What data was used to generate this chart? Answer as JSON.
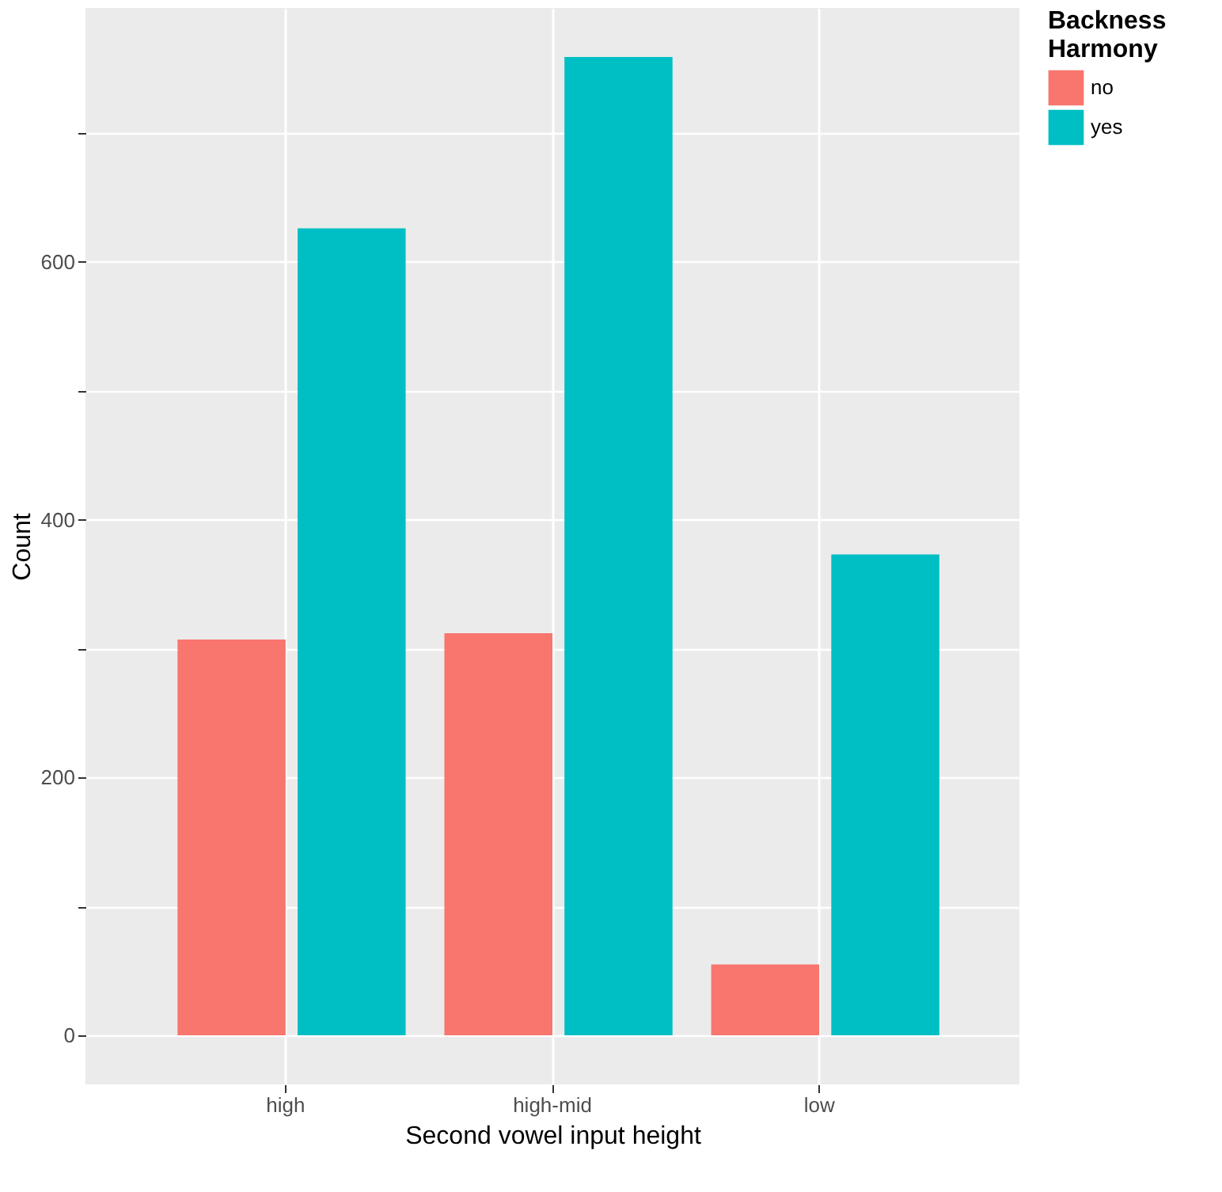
{
  "chart_data": {
    "type": "bar",
    "xlabel": "Second vowel input height",
    "ylabel": "Count",
    "legend_title": "Backness Harmony",
    "categories": [
      "high",
      "high-mid",
      "low"
    ],
    "series": [
      {
        "name": "no",
        "color": "#f8766d",
        "values": [
          307,
          312,
          55
        ]
      },
      {
        "name": "yes",
        "color": "#00bfc4",
        "values": [
          626,
          759,
          373
        ]
      }
    ],
    "ylim": [
      -38,
      797
    ],
    "yticks": [
      0,
      {
        "value": 100,
        "label": null
      },
      200,
      {
        "value": 300,
        "label": null
      },
      400,
      {
        "value": 500,
        "label": null
      },
      600,
      {
        "value": 700,
        "label": null
      }
    ],
    "grid": true,
    "legend": "right"
  }
}
